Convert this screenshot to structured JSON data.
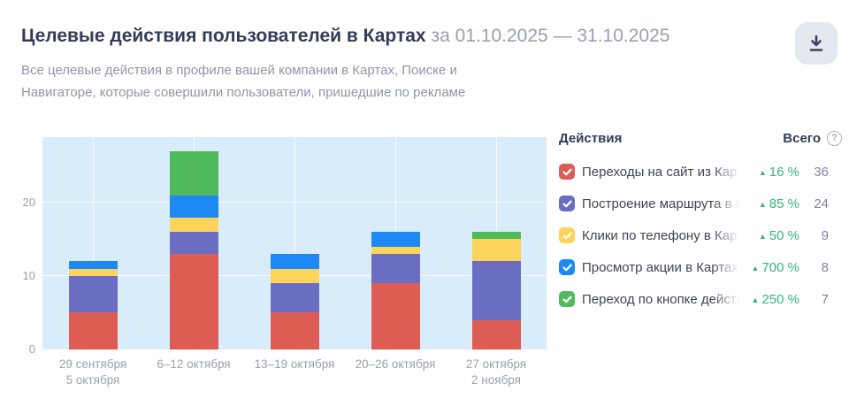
{
  "header": {
    "title": "Целевые действия пользователей в Картах",
    "period": "за 01.10.2025 — 31.10.2025",
    "subtitle": "Все целевые действия в профиле вашей компании в Картах, Поиске и Навигаторе, которые совершили пользователи, пришедшие по рекламе"
  },
  "legend": {
    "header": {
      "actions": "Действия",
      "total": "Всего",
      "help_glyph": "?"
    },
    "trend_up_glyph": "▲",
    "trend_color": "#31b87a",
    "items": [
      {
        "label": "Переходы на сайт из Карт",
        "color": "#dd5c54",
        "change": "16 %",
        "total": "36",
        "checked": true
      },
      {
        "label": "Построение маршрута в Картах",
        "color": "#6a6dc2",
        "change": "85 %",
        "total": "24",
        "checked": true
      },
      {
        "label": "Клики по телефону в Картах",
        "color": "#fcd45c",
        "change": "50 %",
        "total": "9",
        "checked": true
      },
      {
        "label": "Просмотр акции в Картах",
        "color": "#1e88f5",
        "change": "700 %",
        "total": "8",
        "checked": true
      },
      {
        "label": "Переход по кнопке действия из",
        "color": "#4fba5c",
        "change": "250 %",
        "total": "7",
        "checked": true
      }
    ]
  },
  "chart_data": {
    "type": "bar",
    "stacked": true,
    "title": "Целевые действия пользователей в Картах",
    "categories": [
      [
        "29 сентября",
        "5 октября"
      ],
      [
        "6–12 октября"
      ],
      [
        "13–19 октября"
      ],
      [
        "20–26 октября"
      ],
      [
        "27 октября",
        "2 ноября"
      ]
    ],
    "series": [
      {
        "name": "Переходы на сайт из Карт",
        "color": "#dd5c54",
        "values": [
          5,
          13,
          5,
          9,
          4
        ]
      },
      {
        "name": "Построение маршрута в Картах",
        "color": "#6a6dc2",
        "values": [
          5,
          3,
          4,
          4,
          8
        ]
      },
      {
        "name": "Клики по телефону в Картах",
        "color": "#fcd45c",
        "values": [
          1,
          2,
          2,
          1,
          3
        ]
      },
      {
        "name": "Просмотр акции в Картах",
        "color": "#1e88f5",
        "values": [
          1,
          3,
          2,
          2,
          0
        ]
      },
      {
        "name": "Переход по кнопке действия из",
        "color": "#4fba5c",
        "values": [
          0,
          6,
          0,
          0,
          1
        ]
      }
    ],
    "bar_totals": [
      12,
      27,
      13,
      16,
      16
    ],
    "yticks": [
      0,
      10,
      20
    ],
    "ylim": [
      0,
      28.9
    ],
    "grid": true,
    "plot_bg": "#d8edf9",
    "legend_position": "right"
  }
}
